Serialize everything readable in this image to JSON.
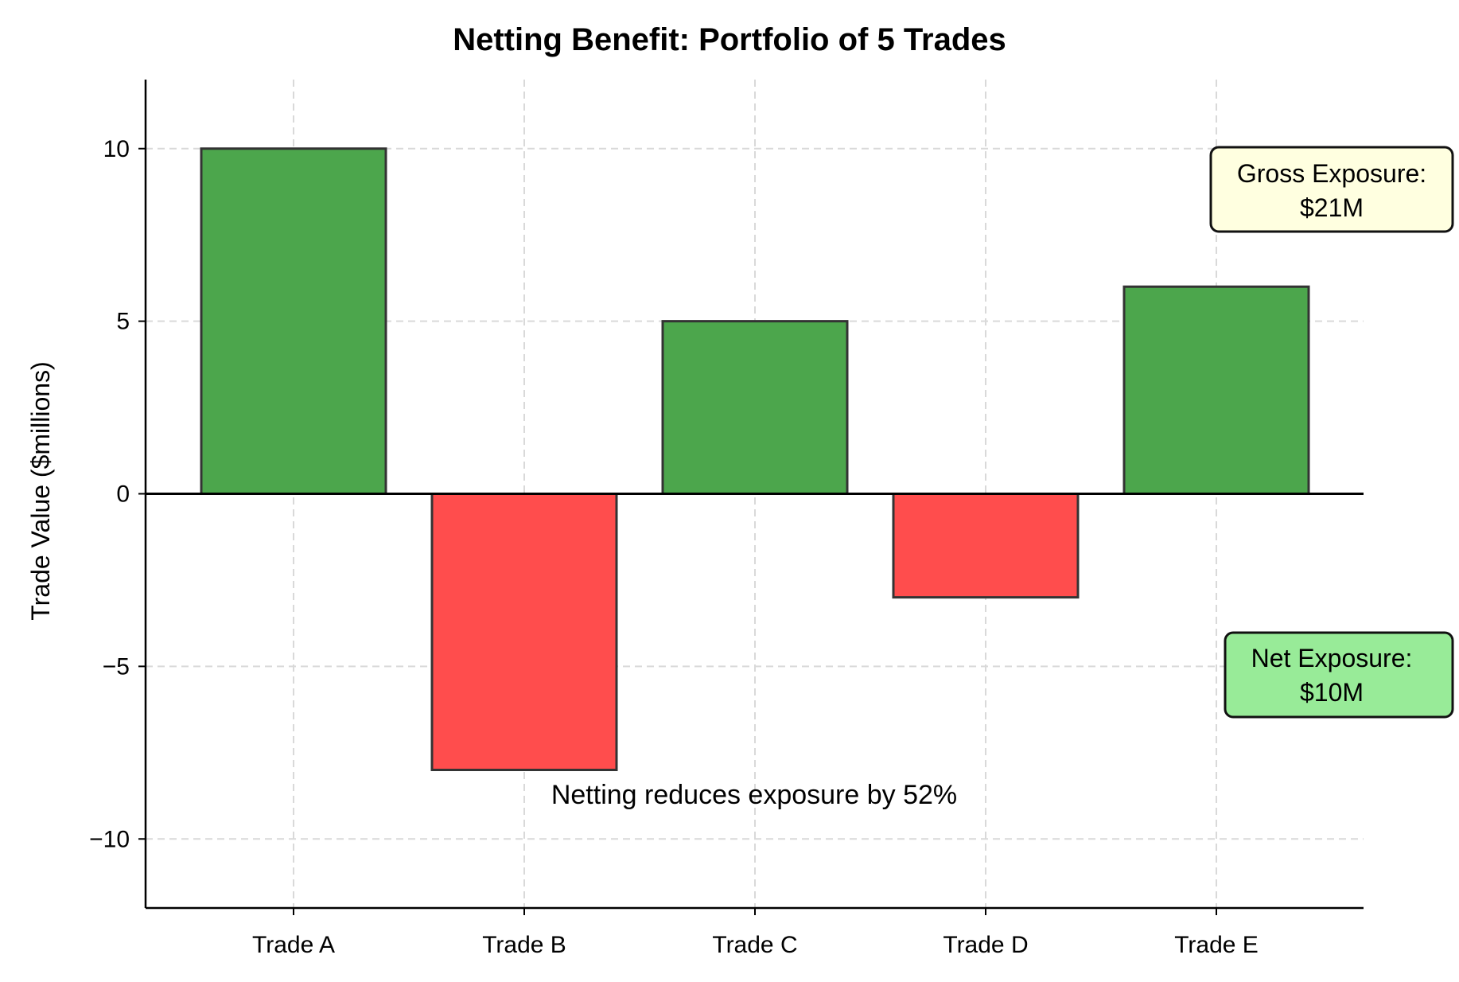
{
  "chart_data": {
    "type": "bar",
    "title": "Netting Benefit: Portfolio of 5 Trades",
    "xlabel": "",
    "ylabel": "Trade Value ($millions)",
    "categories": [
      "Trade A",
      "Trade B",
      "Trade C",
      "Trade D",
      "Trade E"
    ],
    "values": [
      10,
      -8,
      5,
      -3,
      6
    ],
    "ylim": [
      -12,
      12
    ],
    "yticks": [
      -10,
      -5,
      0,
      5,
      10
    ],
    "ytick_labels": [
      "−10",
      "−5",
      "0",
      "5",
      "10"
    ],
    "grid": true,
    "colors": {
      "positive": "#4ca64c",
      "negative": "#ff4d4d",
      "edge": "#333333"
    },
    "annotation": "Netting reduces exposure by 52%",
    "boxes": {
      "gross": {
        "line1": "Gross Exposure:",
        "line2": "$21M",
        "fill": "#ffffe0"
      },
      "net": {
        "line1": "Net Exposure:",
        "line2": "$10M",
        "fill": "#98eb98"
      }
    }
  }
}
